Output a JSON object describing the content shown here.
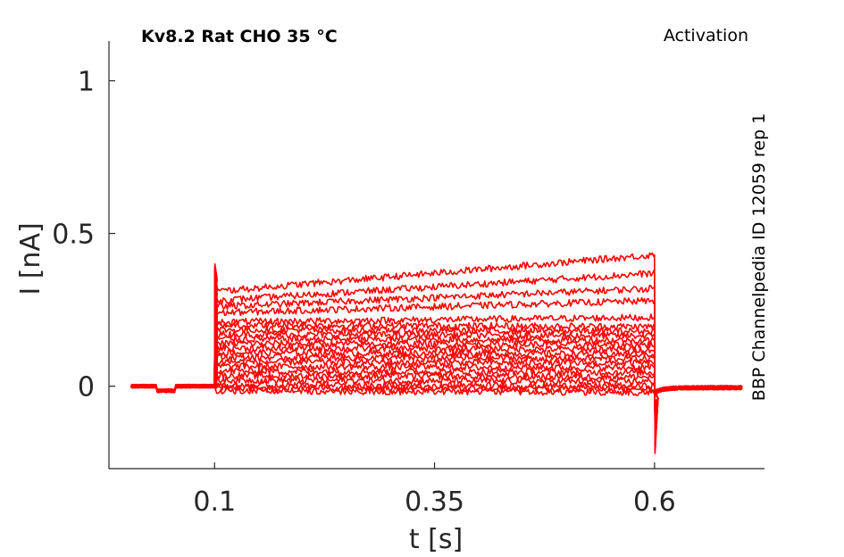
{
  "chart_data": {
    "type": "line",
    "title": "Kv8.2  Rat  CHO  35 °C",
    "subtitle": "Activation",
    "side_label": "BBP Channelpedia ID 12059 rep 1",
    "xlabel": "t [s]",
    "ylabel": "I [nA]",
    "xlim": [
      -0.02,
      0.725
    ],
    "ylim": [
      -0.27,
      1.13
    ],
    "xticks": [
      0.1,
      0.35,
      0.6
    ],
    "xtick_labels": [
      "0.1",
      "0.35",
      "0.6"
    ],
    "yticks": [
      0,
      0.5,
      1
    ],
    "ytick_labels": [
      "0",
      "0.5",
      "1"
    ],
    "grid": false,
    "series_color": "#ff0000",
    "protocol": {
      "t_start": 0.005,
      "step_on": 0.1,
      "step_off": 0.6,
      "t_end": 0.7
    },
    "series": [
      {
        "steady": -0.015,
        "final": -0.02
      },
      {
        "steady": -0.005,
        "final": -0.01
      },
      {
        "steady": 0.005,
        "final": 0.0
      },
      {
        "steady": 0.02,
        "final": 0.015
      },
      {
        "steady": 0.035,
        "final": 0.03
      },
      {
        "steady": 0.05,
        "final": 0.045
      },
      {
        "steady": 0.065,
        "final": 0.06
      },
      {
        "steady": 0.08,
        "final": 0.075
      },
      {
        "steady": 0.095,
        "final": 0.09
      },
      {
        "steady": 0.11,
        "final": 0.105
      },
      {
        "steady": 0.125,
        "final": 0.12
      },
      {
        "steady": 0.14,
        "final": 0.135
      },
      {
        "steady": 0.155,
        "final": 0.15
      },
      {
        "steady": 0.17,
        "final": 0.165
      },
      {
        "steady": 0.185,
        "final": 0.18
      },
      {
        "steady": 0.2,
        "final": 0.195
      },
      {
        "steady": 0.21,
        "final": 0.225
      },
      {
        "steady": 0.24,
        "final": 0.28
      },
      {
        "steady": 0.26,
        "final": 0.32
      },
      {
        "steady": 0.28,
        "final": 0.37
      },
      {
        "steady": 0.31,
        "final": 0.43
      }
    ]
  }
}
